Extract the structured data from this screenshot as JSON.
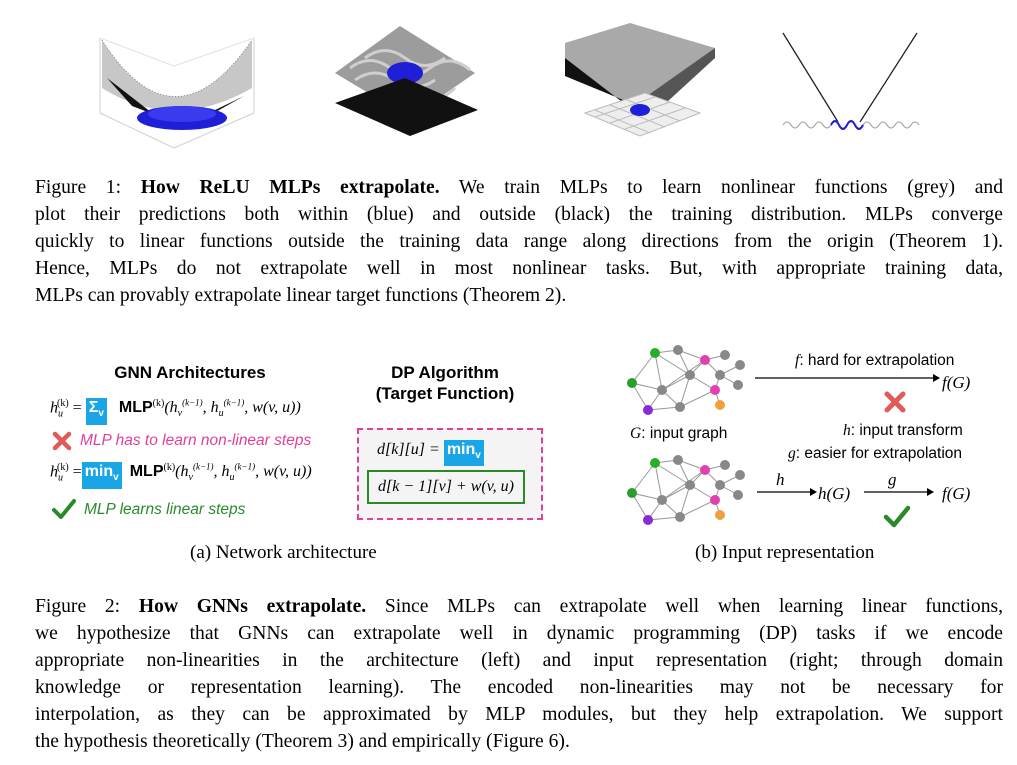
{
  "figure1": {
    "caption": {
      "label": "Figure 1:",
      "bold": "How ReLU MLPs extrapolate.",
      "line1_rest": "We train MLPs to learn nonlinear functions (grey) and",
      "line2": "plot their predictions both within (blue) and outside (black) the training distribution. MLPs converge",
      "line3": "quickly to linear functions outside the training data range along directions from the origin (Theorem 1).",
      "line4": "Hence, MLPs do not extrapolate well in most nonlinear tasks. But, with appropriate training data,",
      "line5": "MLPs can provably extrapolate linear target functions (Theorem 2)."
    }
  },
  "figure2": {
    "panel_a": {
      "gnn_title": "GNN Architectures",
      "dp_title_1": "DP Algorithm",
      "dp_title_2": "(Target Function)",
      "sum_symbol": "Σ",
      "sum_sub": "v",
      "min_text": "min",
      "min_sub": "v",
      "mlp_label": "MLP",
      "bad_text": "MLP has to learn non-linear steps",
      "good_text": "MLP learns linear steps",
      "dp_lhs": "d[k][u] =",
      "dp_rhs": "d[k − 1][v] + w(v, u)",
      "subcaption": "(a) Network architecture"
    },
    "panel_b": {
      "f_label": "f",
      "f_text": ": hard for extrapolation",
      "fG": "f(G)",
      "G_label": "G",
      "G_text": ": input graph",
      "h_label": "h",
      "h_text": ": input transform",
      "g_label": "g",
      "g_text": ": easier for extrapolation",
      "hG": "h(G)",
      "arrow_h": "h",
      "arrow_g": "g",
      "fG2": "f(G)",
      "subcaption": "(b) Input representation"
    },
    "caption": {
      "label": "Figure 2:",
      "bold": "How GNNs extrapolate.",
      "line1_rest": "Since MLPs can extrapolate well when learning linear functions,",
      "line2": "we hypothesize that GNNs can extrapolate well in dynamic programming (DP) tasks if we encode",
      "line3": "appropriate non-linearities in the architecture (left) and input representation (right; through domain",
      "line4": "knowledge or representation learning). The encoded non-linearities may not be necessary for",
      "line5": "interpolation, as they can be approximated by MLP modules, but they help extrapolation. We support",
      "line6": "the hypothesis theoretically (Theorem 3) and empirically (Figure 6)."
    }
  },
  "colors": {
    "blue_highlight": "#1aa6e6",
    "pink": "#e0409a",
    "green": "#2a8a2a",
    "red_cross": "#e05a5a"
  }
}
